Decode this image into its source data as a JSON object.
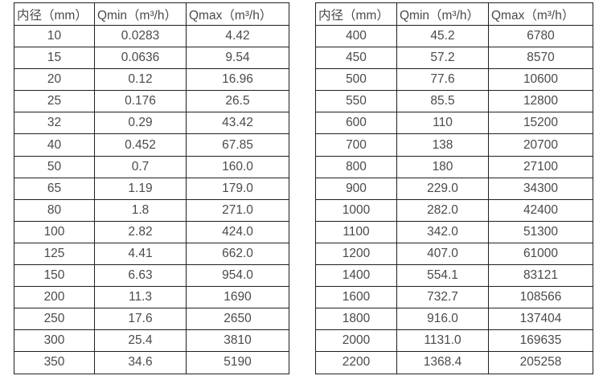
{
  "page": {
    "background_color": "#ffffff",
    "text_color": "#4a4a4a",
    "border_color": "#1f1f1f"
  },
  "tables": [
    {
      "name": "flow-table-small-diameters",
      "headers": [
        "内径（mm）",
        "Qmin（m³/h）",
        "Qmax（m³/h）"
      ],
      "rows": [
        [
          "10",
          "0.0283",
          "4.42"
        ],
        [
          "15",
          "0.0636",
          "9.54"
        ],
        [
          "20",
          "0.12",
          "16.96"
        ],
        [
          "25",
          "0.176",
          "26.5"
        ],
        [
          "32",
          "0.29",
          "43.42"
        ],
        [
          "40",
          "0.452",
          "67.85"
        ],
        [
          "50",
          "0.7",
          "160.0"
        ],
        [
          "65",
          "1.19",
          "179.0"
        ],
        [
          "80",
          "1.8",
          "271.0"
        ],
        [
          "100",
          "2.82",
          "424.0"
        ],
        [
          "125",
          "4.41",
          "662.0"
        ],
        [
          "150",
          "6.63",
          "954.0"
        ],
        [
          "200",
          "11.3",
          "1690"
        ],
        [
          "250",
          "17.6",
          "2650"
        ],
        [
          "300",
          "25.4",
          "3810"
        ],
        [
          "350",
          "34.6",
          "5190"
        ]
      ]
    },
    {
      "name": "flow-table-large-diameters",
      "headers": [
        "内径（mm）",
        "Qmin（m³/h）",
        "Qmax（m³/h）"
      ],
      "rows": [
        [
          "400",
          "45.2",
          "6780"
        ],
        [
          "450",
          "57.2",
          "8570"
        ],
        [
          "500",
          "77.6",
          "10600"
        ],
        [
          "550",
          "85.5",
          "12800"
        ],
        [
          "600",
          "110",
          "15200"
        ],
        [
          "700",
          "138",
          "20700"
        ],
        [
          "800",
          "180",
          "27100"
        ],
        [
          "900",
          "229.0",
          "34300"
        ],
        [
          "1000",
          "282.0",
          "42400"
        ],
        [
          "1100",
          "342.0",
          "51300"
        ],
        [
          "1200",
          "407.0",
          "61000"
        ],
        [
          "1400",
          "554.1",
          "83121"
        ],
        [
          "1600",
          "732.7",
          "108566"
        ],
        [
          "1800",
          "916.0",
          "137404"
        ],
        [
          "2000",
          "1131.0",
          "169635"
        ],
        [
          "2200",
          "1368.4",
          "205258"
        ]
      ]
    }
  ]
}
